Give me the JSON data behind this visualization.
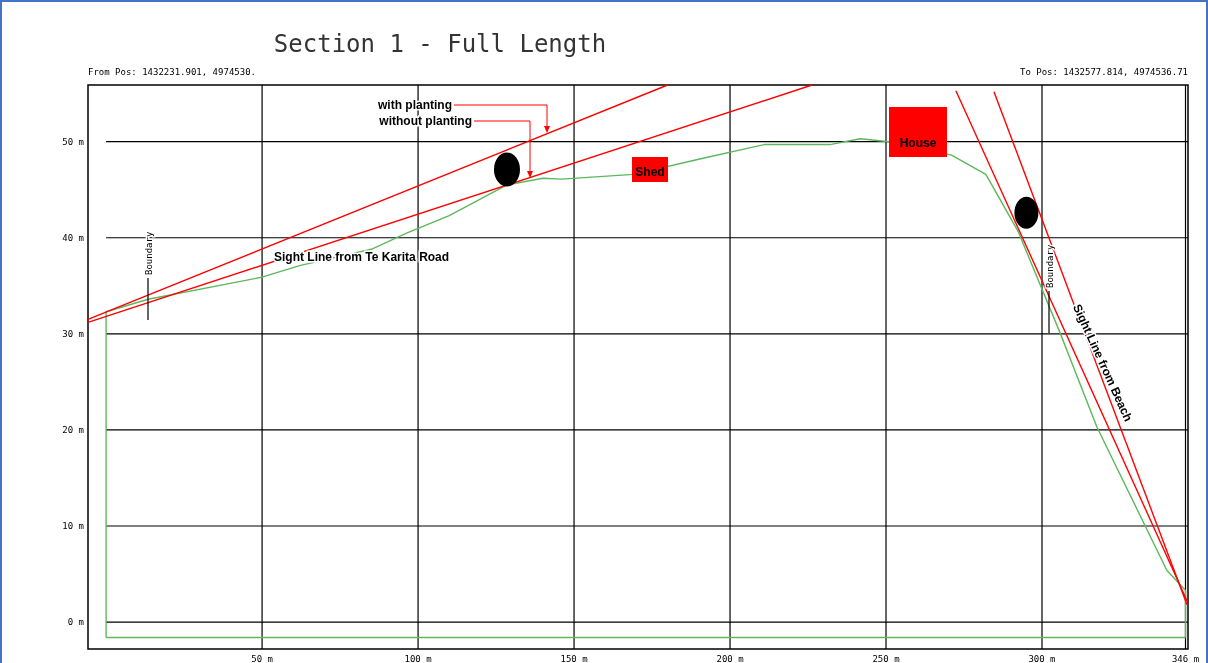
{
  "chart_data": {
    "type": "line",
    "title": "Section 1 - Full Length",
    "xlim": [
      -5.8,
      346.8
    ],
    "ylim": [
      -2.8,
      55.9
    ],
    "xticks": [
      {
        "value": 50,
        "label": "50 m"
      },
      {
        "value": 100,
        "label": "100 m"
      },
      {
        "value": 150,
        "label": "150 m"
      },
      {
        "value": 200,
        "label": "200 m"
      },
      {
        "value": 250,
        "label": "250 m"
      },
      {
        "value": 300,
        "label": "300 m"
      },
      {
        "value": 346,
        "label": "346 m"
      }
    ],
    "yticks": [
      {
        "value": 0,
        "label": "0 m"
      },
      {
        "value": 10,
        "label": "10 m"
      },
      {
        "value": 20,
        "label": "20 m"
      },
      {
        "value": 30,
        "label": "30 m"
      },
      {
        "value": 40,
        "label": "40 m"
      },
      {
        "value": 50,
        "label": "50 m"
      }
    ],
    "grid": true,
    "series": [
      {
        "color": "#5cb85c",
        "x": [
          0,
          0,
          13.5,
          50,
          62,
          85,
          96.5,
          110,
          128.5,
          140,
          146,
          169,
          191.7,
          211,
          232,
          241.7,
          251,
          271,
          282,
          292.3,
          305.8,
          317.6,
          340,
          346,
          346
        ],
        "values": [
          -1.6,
          32.3,
          33.6,
          35.9,
          37.1,
          38.8,
          40.5,
          42.3,
          45.5,
          46.2,
          46.1,
          46.6,
          48.3,
          49.7,
          49.7,
          50.3,
          50,
          48.6,
          46.6,
          40.7,
          30.1,
          20.3,
          5.4,
          3.3,
          -1.6
        ]
      },
      {
        "color": "#5cb85c",
        "x": [
          0,
          346
        ],
        "values": [
          -1.6,
          -1.6
        ]
      },
      {
        "color": "#ff0000",
        "x": [
          -5.8,
          180
        ],
        "values": [
          31.5,
          55.9
        ]
      },
      {
        "color": "#ff0000",
        "x": [
          -5.8,
          226.3
        ],
        "values": [
          31.2,
          55.9
        ]
      },
      {
        "color": "#ff0000",
        "x": [
          272.4,
          346.5
        ],
        "values": [
          55.3,
          2.2
        ]
      },
      {
        "color": "#ff0000",
        "x": [
          284.6,
          346.5
        ],
        "values": [
          55.2,
          1.8
        ]
      }
    ],
    "annotations": [
      "From Pos: 1432231.901, 4974530.",
      "To Pos: 1432577.814, 4974536.71",
      "with planting",
      "without planting",
      "Sight Line from Te Karita Road",
      "Sight Line from Beach",
      "Boundary",
      "Boundary",
      "Shed",
      "House"
    ]
  }
}
